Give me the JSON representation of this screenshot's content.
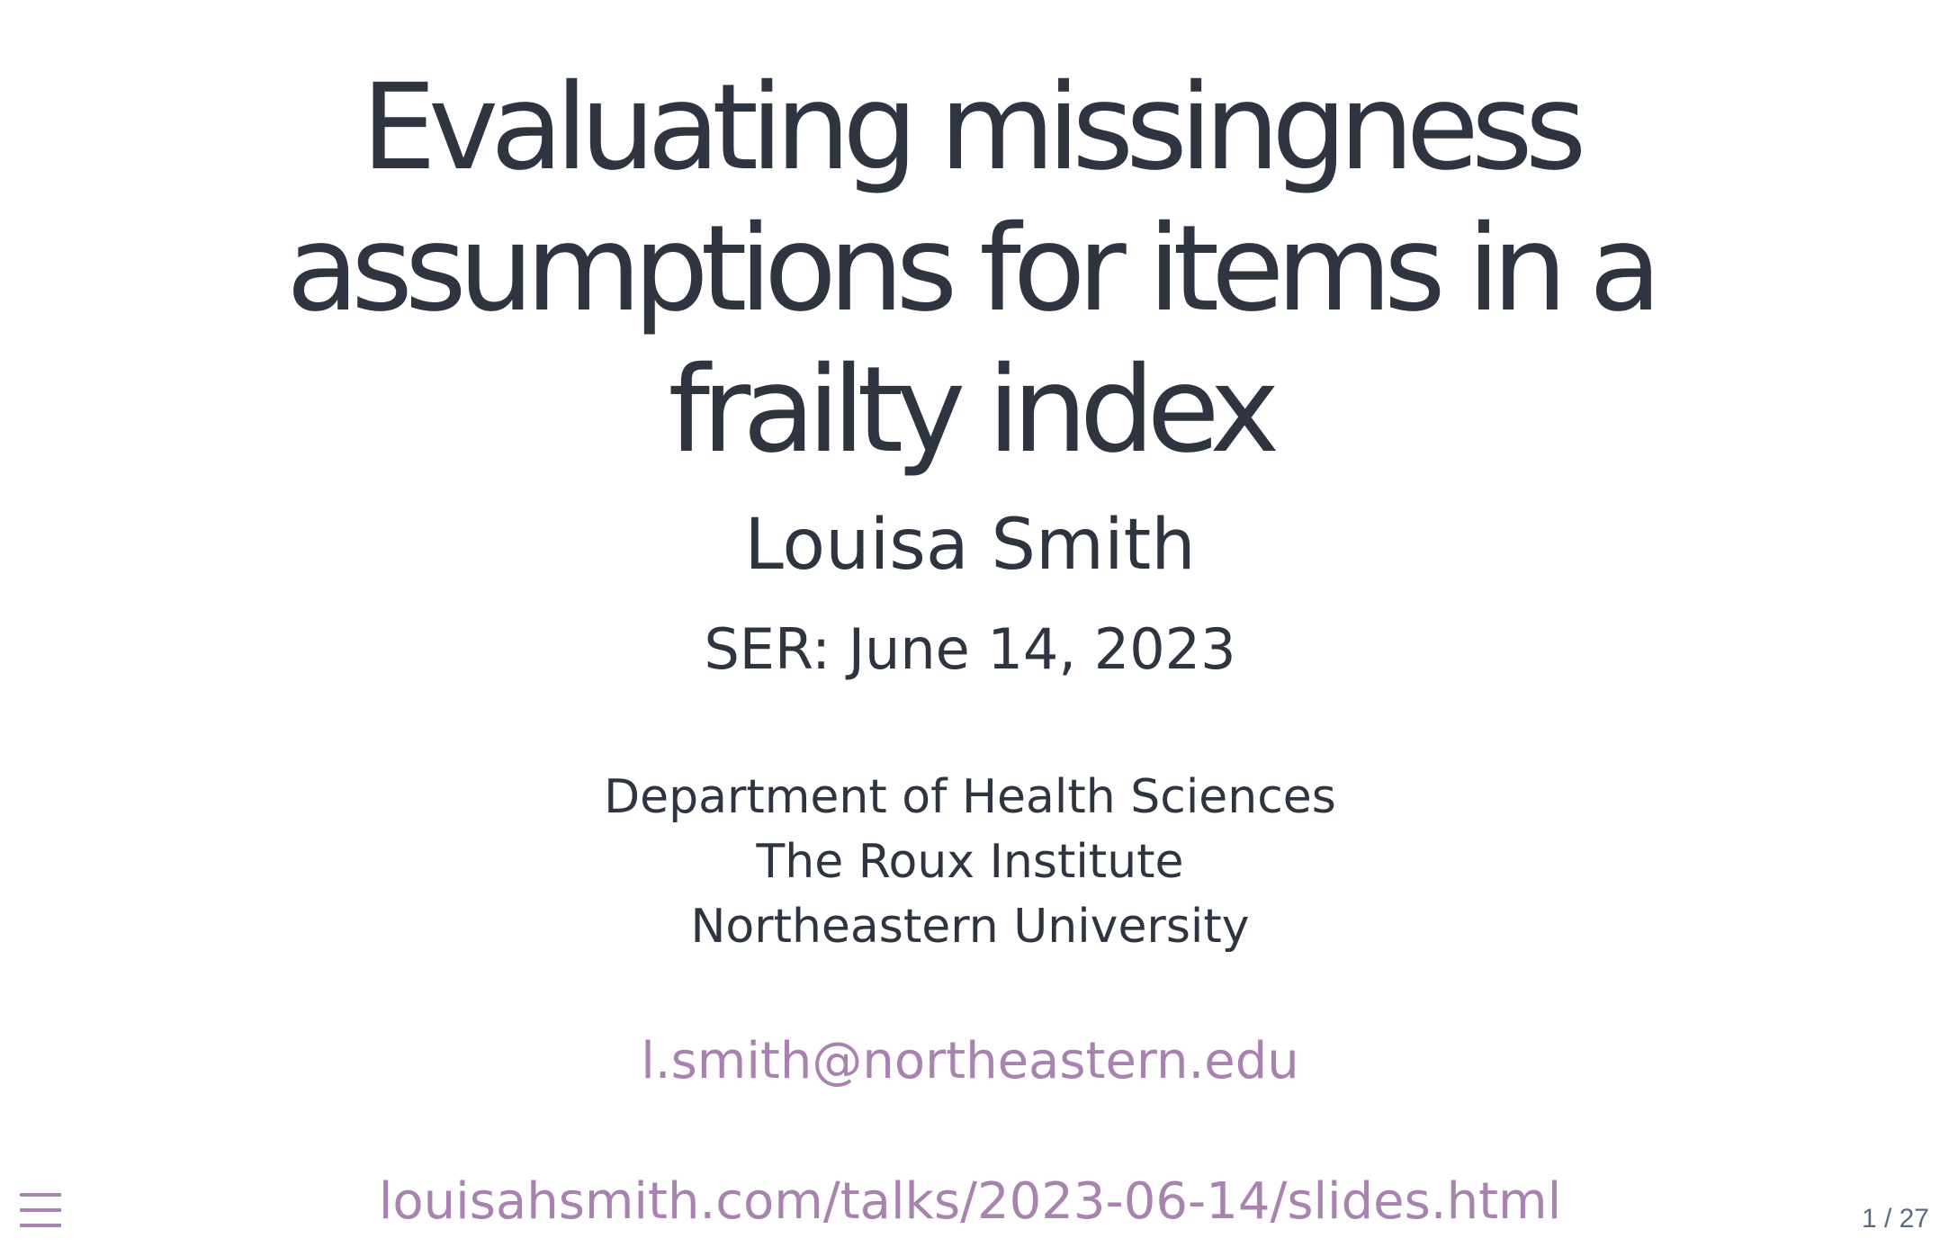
{
  "slide": {
    "title": "Evaluating missingness assumptions for items in a frailty index",
    "author": "Louisa Smith",
    "event": "SER: June 14, 2023",
    "affiliation": [
      "Department of Health Sciences",
      "The Roux Institute",
      "Northeastern University"
    ],
    "email": "l.smith@northeastern.edu",
    "url": "louisahsmith.com/talks/2023-06-14/slides.html"
  },
  "controls": {
    "menu_icon": "hamburger-menu-icon",
    "slide_number": "1 / 27"
  },
  "colors": {
    "text": "#2e3440",
    "link": "#a883b0",
    "background": "#ffffff"
  }
}
